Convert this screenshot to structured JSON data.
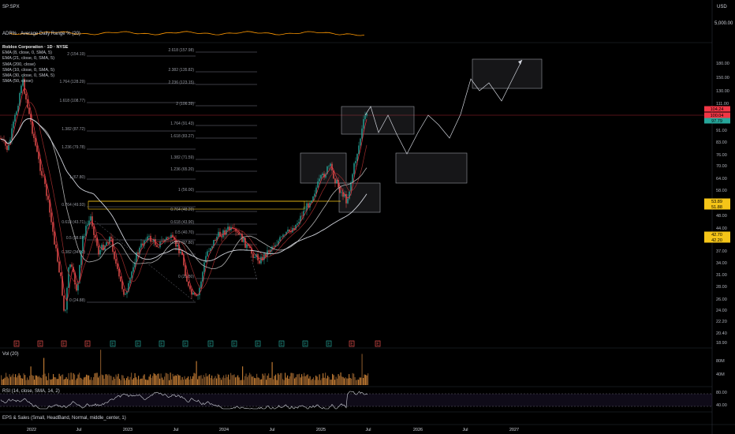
{
  "header": {
    "symbol_top": "SP:SPX",
    "currency": "USD",
    "adr_label": "ADR% · Average Daily Range % (20)",
    "adr_scale": "5,000.00"
  },
  "legend": [
    "Roblox Corporation · 1D · NYSE",
    "EMA (8, close, 0, SMA, 5)",
    "EMA (21, close, 0, SMA, 5)",
    "SMA (200, close)",
    "SMA (10, close, 0, SMA, 5)",
    "SMA (30, close, 0, SMA, 5)",
    "SMA (50, close)"
  ],
  "price_axis": [
    "180.00",
    "150.00",
    "130.00",
    "111.00",
    "91.00",
    "83.00",
    "76.00",
    "70.00",
    "64.00",
    "58.00",
    "53.00",
    "48.00",
    "44.00",
    "40.00",
    "37.00",
    "34.00",
    "31.00",
    "28.00",
    "26.00",
    "24.00",
    "22.20",
    "20.40",
    "18.90"
  ],
  "price_tags": [
    {
      "text": "104.24",
      "color": "#f23645",
      "y": 138
    },
    {
      "text": "100.04",
      "color": "#f23645",
      "y": 146
    },
    {
      "text": "97.79",
      "color": "#26a69a",
      "y": 153
    },
    {
      "text": "53.89",
      "color": "#f5c518",
      "y": 255
    },
    {
      "text": "51.88",
      "color": "#f5c518",
      "y": 262
    },
    {
      "text": "42.70",
      "color": "#f5c518",
      "y": 297
    },
    {
      "text": "42.20",
      "color": "#f5c518",
      "y": 304
    }
  ],
  "fib_left": [
    {
      "label": "2 (154.19)",
      "y": 71
    },
    {
      "label": "1.764 (128.29)",
      "y": 106
    },
    {
      "label": "1.618 (108.77)",
      "y": 130
    },
    {
      "label": "1.382 (87.72)",
      "y": 166
    },
    {
      "label": "1.236 (79.78)",
      "y": 189
    },
    {
      "label": "1 (67.80)",
      "y": 227
    },
    {
      "label": "0.764 (49.93)",
      "y": 262
    },
    {
      "label": "0.618 (43.71)",
      "y": 284
    },
    {
      "label": "0.5 (38.69)",
      "y": 304
    },
    {
      "label": "0.382 (34.80)",
      "y": 322
    },
    {
      "label": "0 (24.88)",
      "y": 383
    }
  ],
  "fib_right": [
    {
      "label": "2.618 (157.98)",
      "y": 66
    },
    {
      "label": "2.382 (135.82)",
      "y": 91
    },
    {
      "label": "2.236 (123.15)",
      "y": 107
    },
    {
      "label": "2 (106.39)",
      "y": 134
    },
    {
      "label": "1.764 (91.43)",
      "y": 159
    },
    {
      "label": "1.618 (83.27)",
      "y": 175
    },
    {
      "label": "1.382 (71.59)",
      "y": 202
    },
    {
      "label": "1.236 (65.20)",
      "y": 217
    },
    {
      "label": "1 (56.00)",
      "y": 243
    },
    {
      "label": "0.764 (48.20)",
      "y": 268
    },
    {
      "label": "0.618 (43.90)",
      "y": 284
    },
    {
      "label": "0.5 (40.70)",
      "y": 297
    },
    {
      "label": "0.382 (37.80)",
      "y": 310
    },
    {
      "label": "0 (29.80)",
      "y": 353
    }
  ],
  "earnings_markers": [
    "E",
    "E",
    "E",
    "E",
    "E",
    "E",
    "E",
    "E",
    "E",
    "E",
    "E",
    "E",
    "E",
    "E",
    "E",
    "E"
  ],
  "volume": {
    "label": "Vol (20)",
    "scale": [
      "80M",
      "40M"
    ]
  },
  "rsi": {
    "label": "RSI (14, close, SMA, 14, 2)",
    "scale": [
      "80.00",
      "40.00"
    ]
  },
  "eps_label": "EPS & Sales (Small, HeadBand, Normal, middle_center, 1)",
  "time_axis": [
    "2022",
    "Jul",
    "2023",
    "Jul",
    "2024",
    "Jul",
    "2025",
    "Jul",
    "2026",
    "Jul",
    "2027"
  ],
  "colors": {
    "up": "#26a69a",
    "down": "#ef5350",
    "ema8": "#f23645",
    "ema21": "#9c2b2b",
    "sma200": "#d1d4dc",
    "sma50": "#b0b0b0",
    "fib": "#787b86",
    "yellow": "#f5c518",
    "rsi": "#d1d4dc",
    "adr": "#ff9800",
    "vol_up": "#d98b3a",
    "vol_dn": "#8c5a2b"
  }
}
